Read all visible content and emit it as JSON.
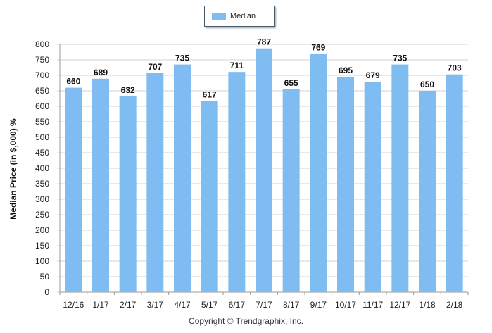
{
  "chart_data": {
    "type": "bar",
    "categories": [
      "12/16",
      "1/17",
      "2/17",
      "3/17",
      "4/17",
      "5/17",
      "6/17",
      "7/17",
      "8/17",
      "9/17",
      "10/17",
      "11/17",
      "12/17",
      "1/18",
      "2/18"
    ],
    "series": [
      {
        "name": "Median",
        "values": [
          660,
          689,
          632,
          707,
          735,
          617,
          711,
          787,
          655,
          769,
          695,
          679,
          735,
          650,
          703
        ]
      }
    ],
    "ylabel": "Median Price (in $,000) %",
    "xlabel": "",
    "ylim": [
      0,
      800
    ],
    "yticks": [
      0,
      50,
      100,
      150,
      200,
      250,
      300,
      350,
      400,
      450,
      500,
      550,
      600,
      650,
      700,
      750,
      800
    ],
    "grid": true,
    "legend_position": "top-center",
    "bar_color": "#7fbcf2",
    "data_labels": true
  },
  "footer": {
    "copyright": "Copyright © Trendgraphix, Inc."
  }
}
